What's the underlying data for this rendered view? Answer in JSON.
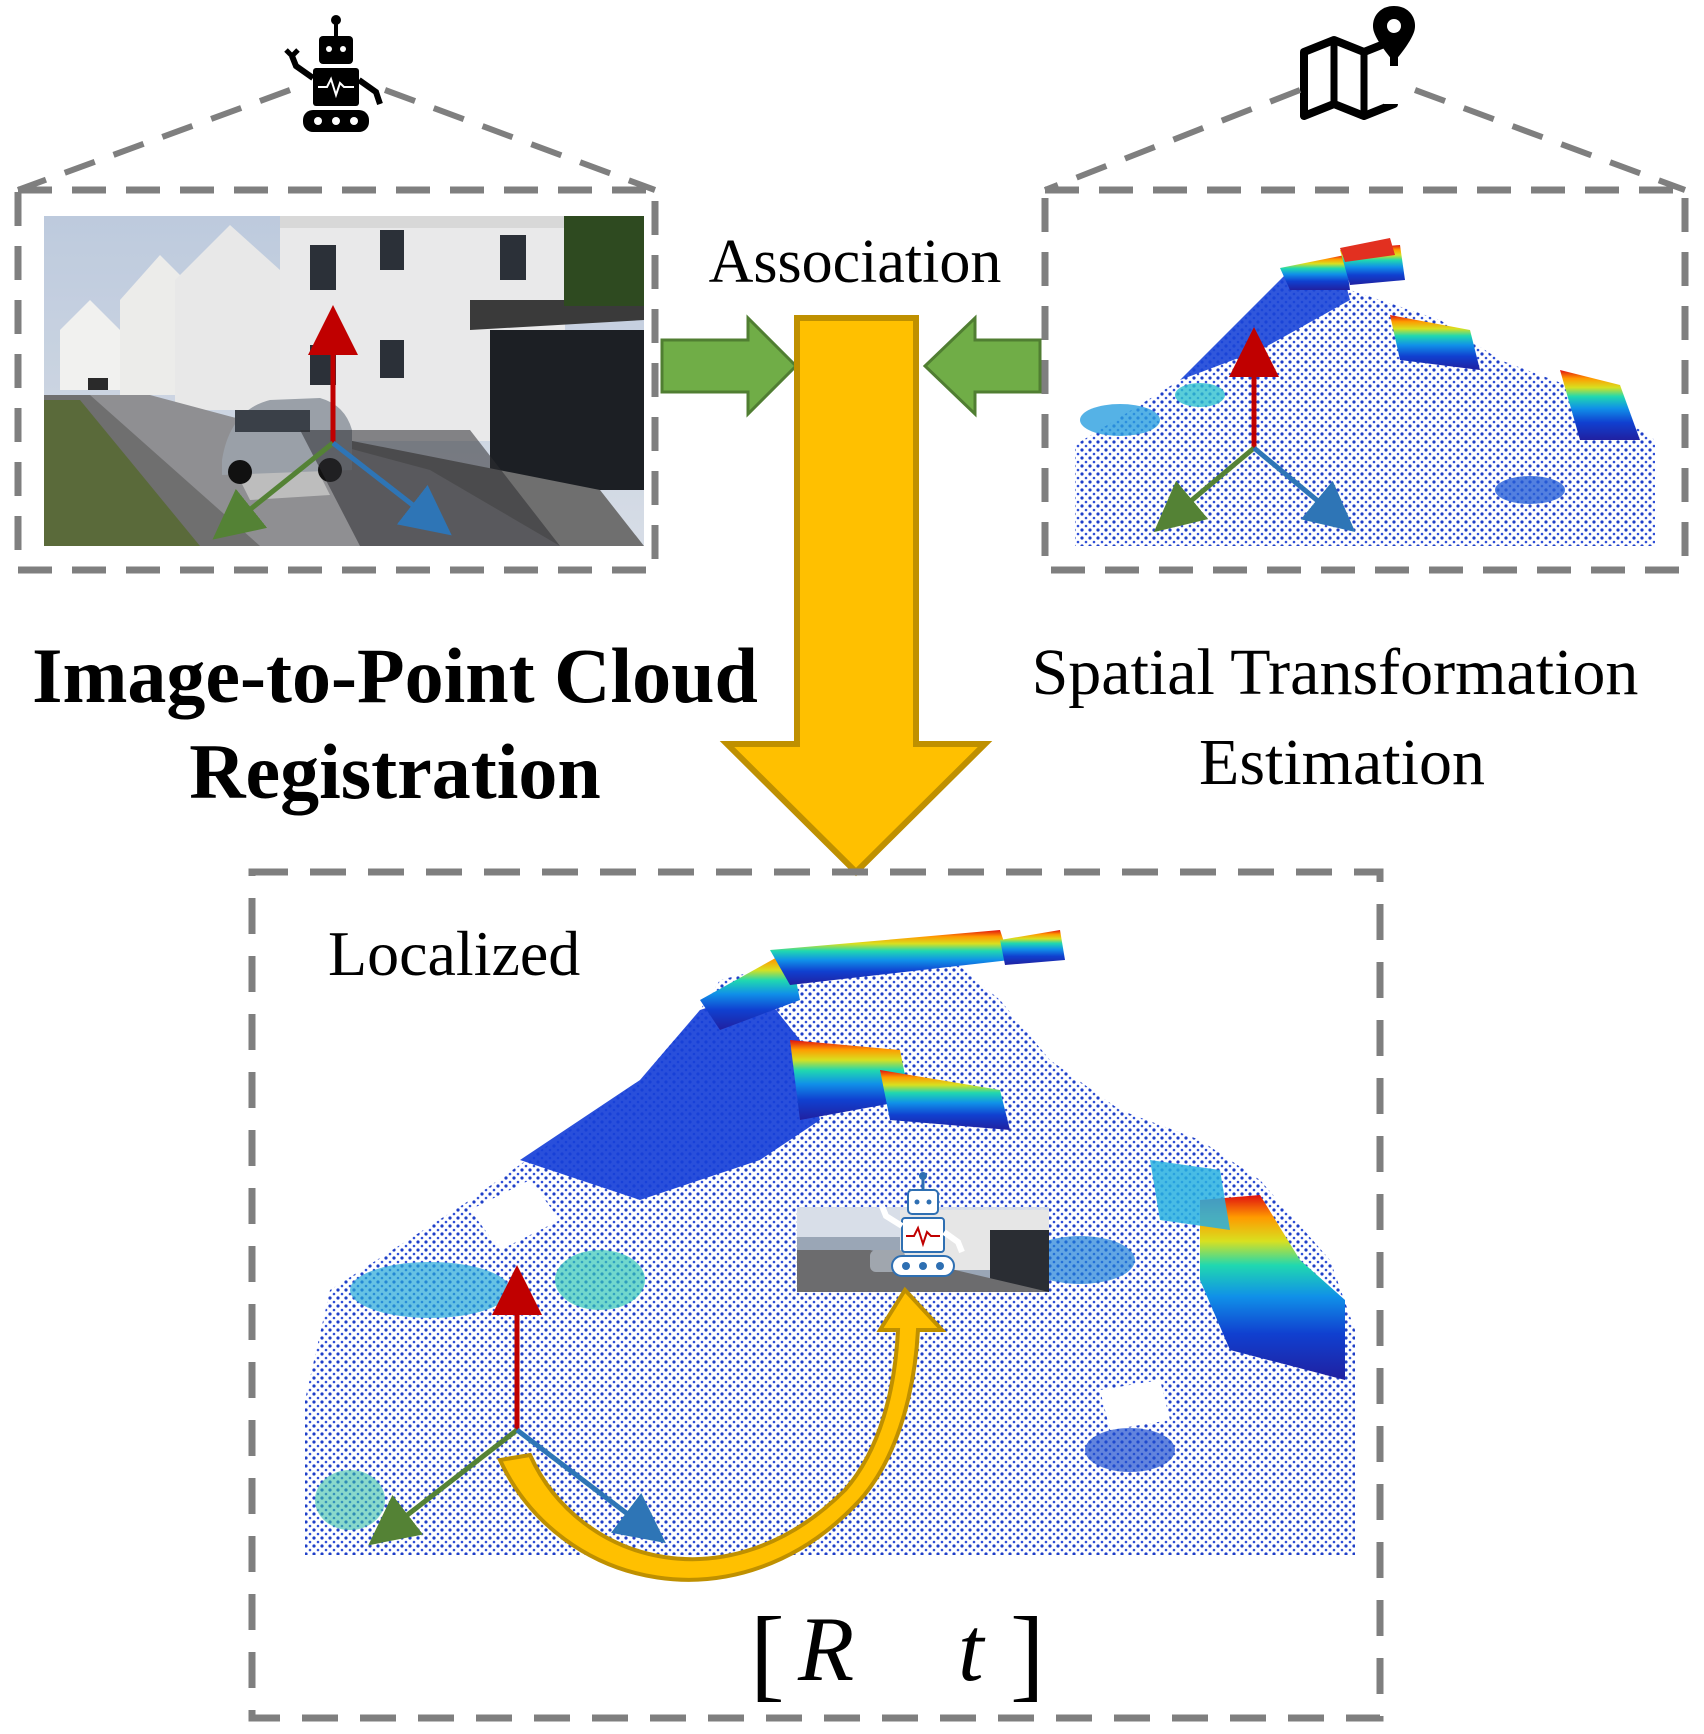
{
  "labels": {
    "association": "Association",
    "title_line1": "Image-to-Point Cloud",
    "title_line2": "Registration",
    "spatial_line1": "Spatial Transformation",
    "spatial_line2": "Estimation",
    "localized": "Localized",
    "transform_open": "[",
    "transform_R": "R",
    "transform_t": "t",
    "transform_close": "]"
  },
  "colors": {
    "dash_gray": "#7f7f7f",
    "green_arrow": "#70ad47",
    "green_arrow_edge": "#507e32",
    "gold_arrow": "#ffc000",
    "gold_arrow_edge": "#bf9000",
    "axis_red": "#c00000",
    "axis_green": "#548235",
    "axis_blue": "#2e75b6"
  },
  "icons": {
    "robot": "robot-icon",
    "map": "map-pin-icon"
  }
}
